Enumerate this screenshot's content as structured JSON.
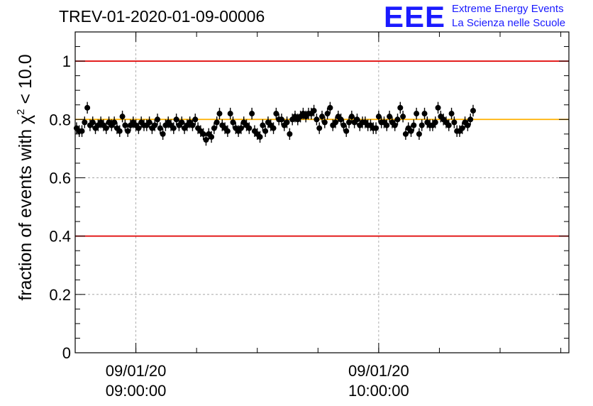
{
  "page": {
    "title": "TREV-01-2020-01-09-00006",
    "logo": {
      "mark": "EEE",
      "line1": "Extreme Energy Events",
      "line2": "La Scienza nelle Scuole"
    },
    "ylabel_main": "fraction of events with ",
    "ylabel_chi": "χ",
    "ylabel_sup": "2",
    "ylabel_tail": " < 10.0"
  },
  "colors": {
    "threshold": "#e00000",
    "mean": "#ffb000",
    "markers": "#000000",
    "grid": "#9a9a9a",
    "logo": "#1a1aff"
  },
  "chart_data": {
    "type": "scatter",
    "title": "TREV-01-2020-01-09-00006",
    "xlabel": "",
    "ylabel": "fraction of events with χ2 < 10.0",
    "xlim": [
      "2020-01-09T08:45:00",
      "2020-01-09T10:47:00"
    ],
    "ylim": [
      0,
      1.1
    ],
    "yticks": [
      0,
      0.2,
      0.4,
      0.6,
      0.8,
      1
    ],
    "ytick_labels": [
      "0",
      "0.2",
      "0.4",
      "0.6",
      "0.8",
      "1"
    ],
    "xticks_major": [
      {
        "t": "2020-01-09T09:00:00",
        "line1": "09/01/20",
        "line2": "09:00:00"
      },
      {
        "t": "2020-01-09T10:00:00",
        "line1": "09/01/20",
        "line2": "10:00:00"
      }
    ],
    "grid": true,
    "legend": "none",
    "reference_lines": [
      {
        "y": 1.0,
        "role": "upper-threshold"
      },
      {
        "y": 0.4,
        "role": "lower-threshold"
      },
      {
        "y": 0.8,
        "role": "mean"
      }
    ],
    "error_bar": 0.02,
    "x_start": "2020-01-09T08:45:20",
    "x_step_seconds": 40,
    "values": [
      0.77,
      0.76,
      0.76,
      0.79,
      0.84,
      0.78,
      0.79,
      0.77,
      0.78,
      0.79,
      0.78,
      0.77,
      0.79,
      0.78,
      0.79,
      0.77,
      0.76,
      0.81,
      0.78,
      0.76,
      0.78,
      0.79,
      0.78,
      0.77,
      0.79,
      0.78,
      0.78,
      0.79,
      0.77,
      0.78,
      0.8,
      0.77,
      0.75,
      0.78,
      0.79,
      0.78,
      0.77,
      0.8,
      0.78,
      0.79,
      0.77,
      0.78,
      0.79,
      0.78,
      0.8,
      0.77,
      0.76,
      0.75,
      0.73,
      0.75,
      0.74,
      0.77,
      0.79,
      0.82,
      0.78,
      0.77,
      0.76,
      0.82,
      0.79,
      0.77,
      0.76,
      0.77,
      0.79,
      0.78,
      0.77,
      0.82,
      0.76,
      0.75,
      0.74,
      0.78,
      0.76,
      0.79,
      0.78,
      0.77,
      0.82,
      0.8,
      0.8,
      0.78,
      0.79,
      0.75,
      0.8,
      0.81,
      0.8,
      0.81,
      0.82,
      0.81,
      0.82,
      0.82,
      0.83,
      0.8,
      0.77,
      0.81,
      0.79,
      0.82,
      0.84,
      0.78,
      0.79,
      0.81,
      0.8,
      0.78,
      0.76,
      0.79,
      0.81,
      0.79,
      0.8,
      0.78,
      0.79,
      0.79,
      0.78,
      0.78,
      0.77,
      0.77,
      0.81,
      0.79,
      0.79,
      0.78,
      0.81,
      0.79,
      0.78,
      0.8,
      0.84,
      0.81,
      0.75,
      0.77,
      0.76,
      0.78,
      0.82,
      0.75,
      0.78,
      0.82,
      0.79,
      0.78,
      0.78,
      0.79,
      0.84,
      0.81,
      0.8,
      0.79,
      0.78,
      0.82,
      0.79,
      0.76,
      0.76,
      0.77,
      0.79,
      0.78,
      0.8,
      0.83
    ]
  }
}
